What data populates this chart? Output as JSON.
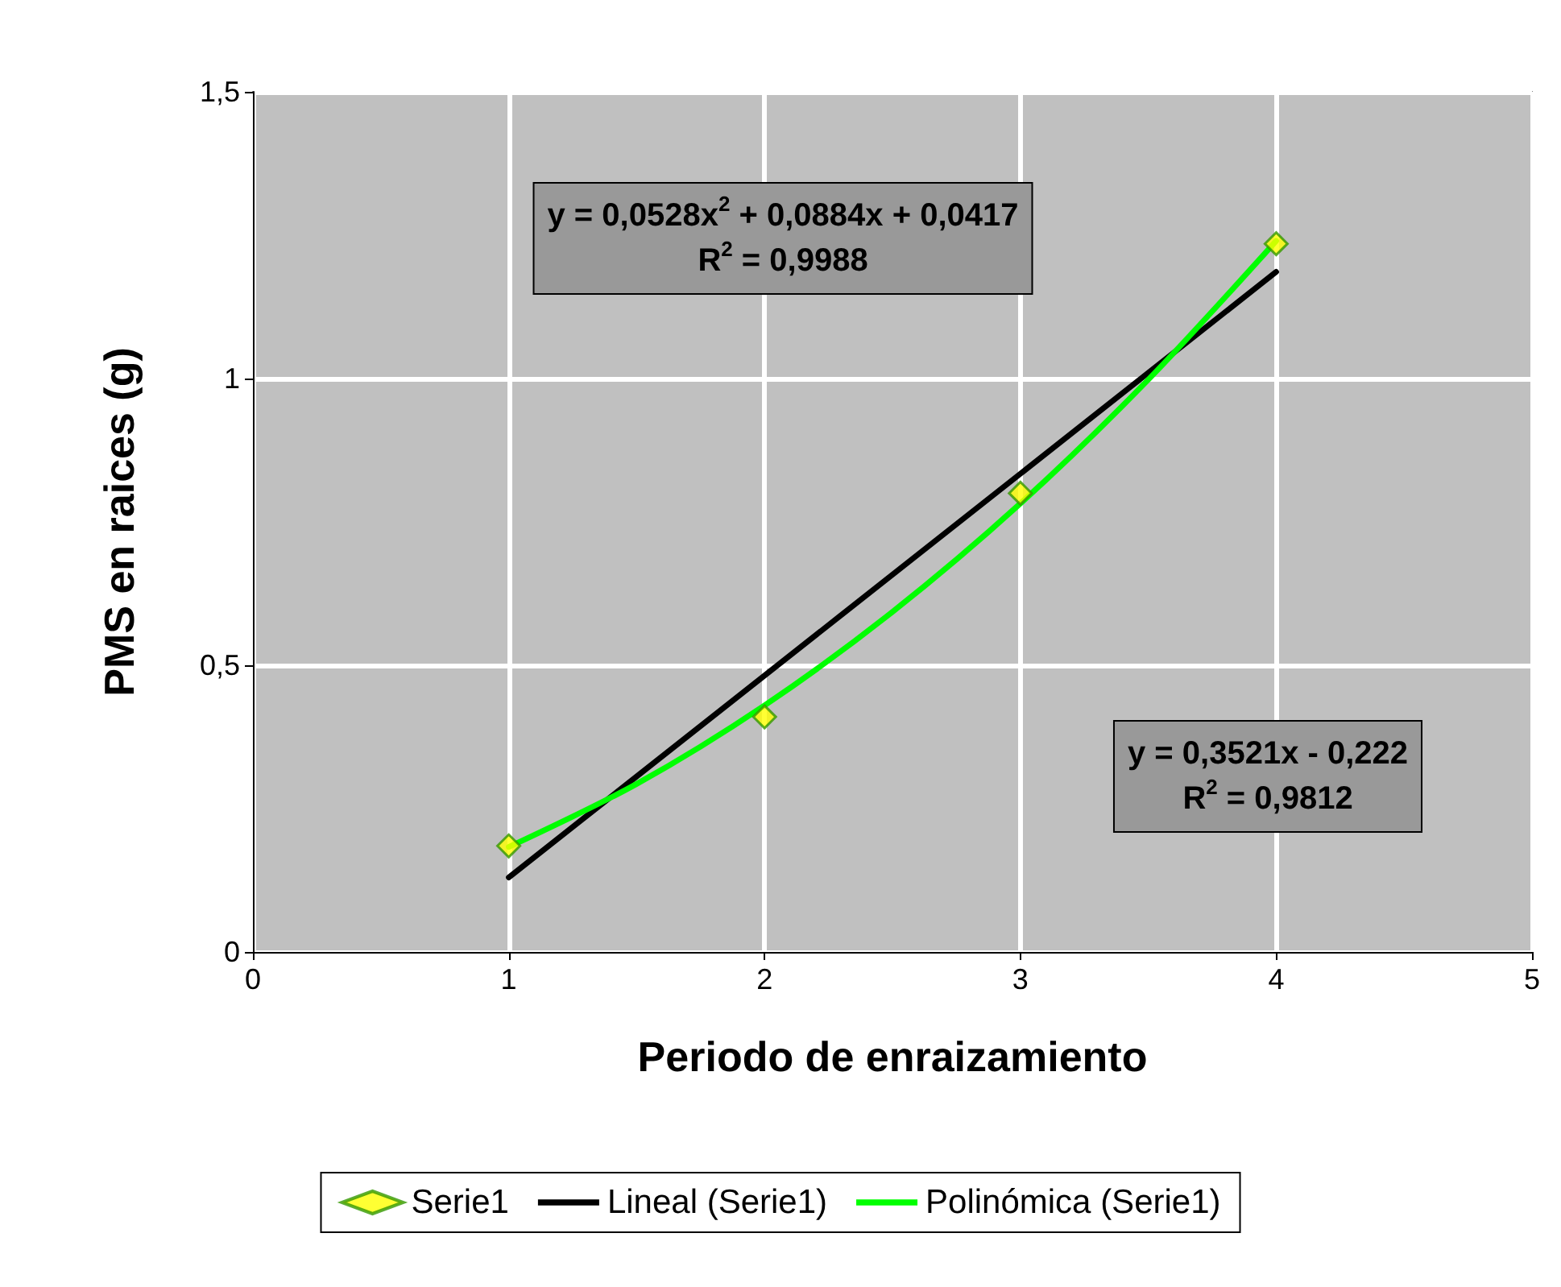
{
  "chart_data": {
    "type": "scatter",
    "xlabel": "Periodo de enraizamiento",
    "ylabel": "PMS en raices (g)",
    "xlim": [
      0,
      5
    ],
    "xticks": [
      0,
      1,
      2,
      3,
      4,
      5
    ],
    "ylim": [
      0,
      1.5
    ],
    "yticks": [
      0,
      {
        "value": 0.5,
        "label": "0,5"
      },
      1,
      {
        "value": 1.5,
        "label": "1,5"
      }
    ],
    "grid": true,
    "legend": "bottom",
    "series": [
      {
        "name": "Serie1",
        "marker": "diamond",
        "color": "#ffff00",
        "x": [
          1,
          2,
          3,
          4
        ],
        "values": [
          0.185,
          0.41,
          0.8,
          1.235
        ]
      },
      {
        "name": "Lineal (Serie1)",
        "type": "line",
        "marker": "none",
        "color": "#000000",
        "x": [
          1,
          4
        ],
        "values": [
          0.13,
          1.186
        ]
      },
      {
        "name": "Polinómica (Serie1)",
        "type": "line",
        "marker": "none",
        "color": "#00ff00",
        "x": [
          1,
          1.5,
          2,
          2.5,
          3,
          3.5,
          4
        ],
        "values": [
          0.183,
          0.293,
          0.43,
          0.593,
          0.782,
          0.998,
          1.24
        ]
      }
    ],
    "annotations": [
      "y = 0,0528x$^{2}$ + 0,0884x + 0,0417\nR$^{2}$ = 0,9988",
      "y = 0,3521x - 0,222\nR$^{2}$ = 0,9812"
    ]
  }
}
